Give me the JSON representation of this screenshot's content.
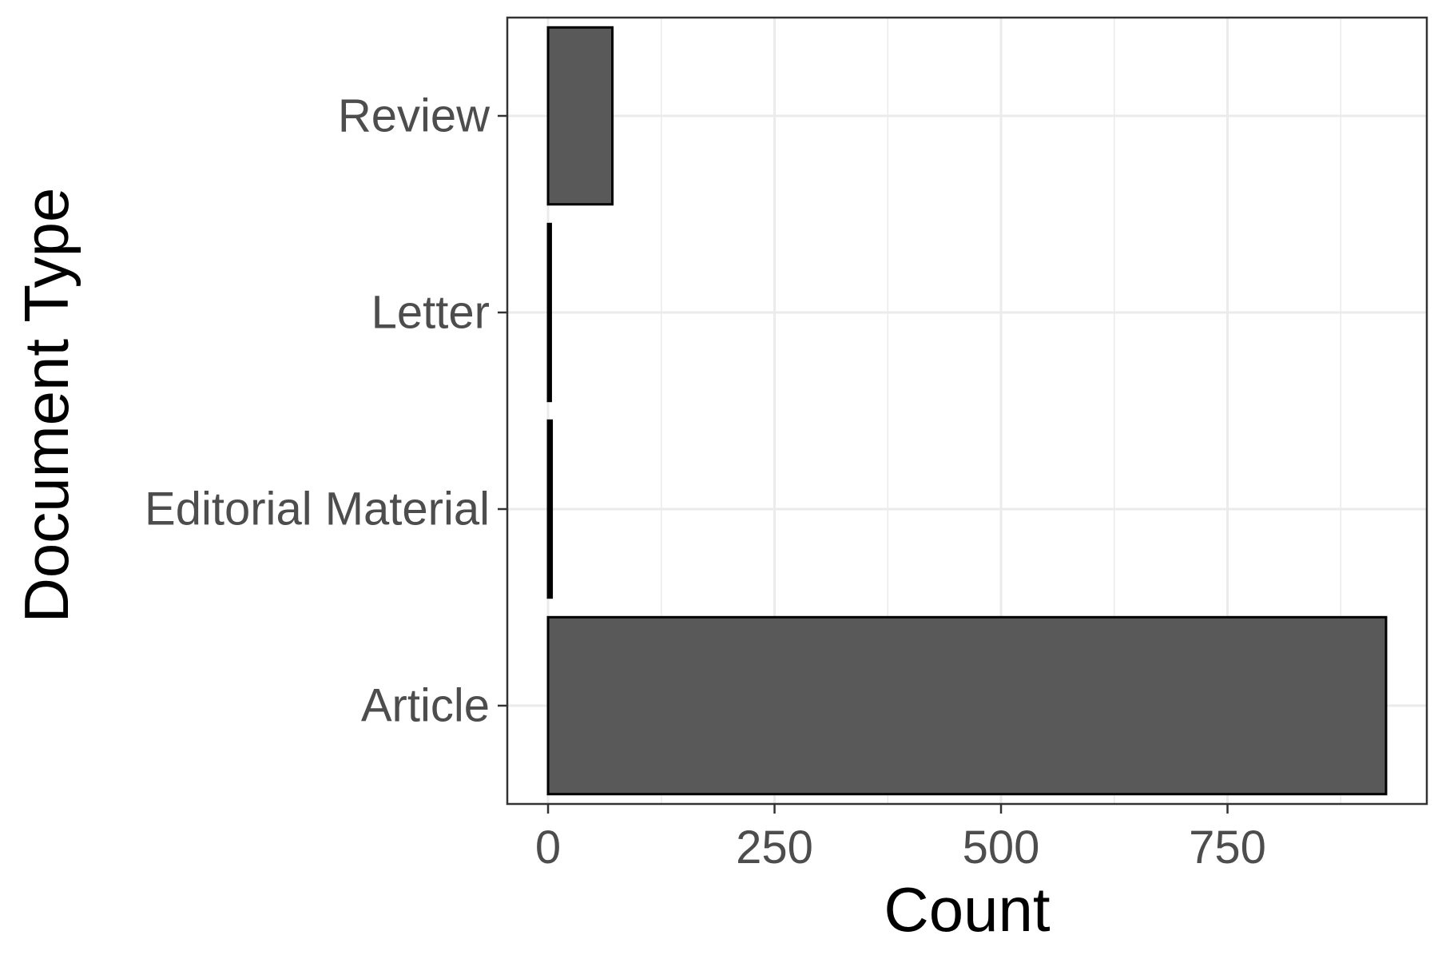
{
  "chart_data": {
    "type": "bar",
    "orientation": "horizontal",
    "title": "",
    "xlabel": "Count",
    "ylabel": "Document Type",
    "categories": [
      "Article",
      "Editorial Material",
      "Letter",
      "Review"
    ],
    "values": [
      925,
      4,
      3,
      71
    ],
    "xlim": [
      -45,
      970
    ],
    "xticks": [
      0,
      250,
      500,
      750
    ],
    "xtick_labels": [
      "0",
      "250",
      "500",
      "750"
    ],
    "grid": true,
    "legend": "none",
    "colors": {
      "bar_fill": "#595959",
      "bar_stroke": "#000000",
      "grid": "#ebebeb",
      "panel_border": "#333333",
      "tick_label": "#4d4d4d",
      "axis_title": "#000000"
    }
  }
}
